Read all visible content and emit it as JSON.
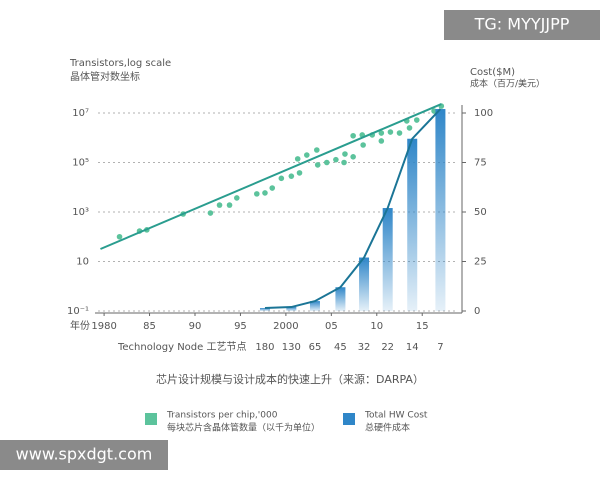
{
  "chart_data": {
    "type": "combo",
    "title": "芯片设计规模与设计成本的快速上升（来源：DARPA）",
    "ylabel": "Transistors,log scale",
    "ylabel_cn": "晶体管对数坐标",
    "y2label": "Cost($M)",
    "y2label_cn": "成本（百万/美元）",
    "xlabel": "年份",
    "node_label": "Technology Node 工艺节点",
    "xlim": [
      1979,
      2018
    ],
    "xticks": [
      1980,
      {
        "value": 1985,
        "label": "85"
      },
      {
        "value": 1990,
        "label": "90"
      },
      {
        "value": 1995,
        "label": "95"
      },
      2000,
      {
        "value": 2005,
        "label": "05"
      },
      {
        "value": 2010,
        "label": "10"
      },
      {
        "value": 2015,
        "label": "15"
      }
    ],
    "yscale": "log",
    "ylim": [
      0.1,
      10000000
    ],
    "yticks": [
      {
        "value": 0.1,
        "label": "10⁻¹"
      },
      10,
      {
        "value": 1000,
        "label": "10³"
      },
      {
        "value": 100000,
        "label": "10⁵"
      },
      {
        "value": 10000000,
        "label": "10⁷"
      }
    ],
    "y2lim": [
      0,
      100
    ],
    "y2ticks": [
      0,
      25,
      50,
      75,
      100
    ],
    "grid": true,
    "series": [
      {
        "type": "scatter",
        "name": "Transistors per chip,'000",
        "name_cn": "每块芯片含晶体管数量（以千为单位）",
        "color": "#5cc39c",
        "x": [
          1981.7,
          1983.9,
          1984.7,
          1988.7,
          1991.7,
          1992.7,
          1993.8,
          1994.6,
          1996.8,
          1997.7,
          1998.5,
          1999.5,
          2000.6,
          2001.5,
          2001.3,
          2002.3,
          2003.4,
          2003.5,
          2004.5,
          2005.5,
          2006.5,
          2006.4,
          2007.4,
          2007.4,
          2008.4,
          2008.5,
          2009.5,
          2010.5,
          2010.5,
          2011.5,
          2012.5,
          2013.3,
          2013.6,
          2014.4,
          2016.3,
          2017.1
        ],
        "values": [
          100,
          170,
          190,
          830,
          910,
          1900,
          1900,
          3700,
          5400,
          5900,
          9300,
          23000,
          28000,
          38000,
          140000,
          200000,
          320000,
          80000,
          100000,
          130000,
          220000,
          100000,
          170000,
          1200000,
          1300000,
          510000,
          1300000,
          1550000,
          740000,
          1700000,
          1550000,
          4800000,
          2500000,
          5200000,
          12000000,
          19000000
        ]
      },
      {
        "type": "bar",
        "axis": "y2",
        "name": "Total HW Cost",
        "name_cn": "总硬件成本",
        "color": "#2f86c8",
        "line_color": "#1b7596",
        "categories": [
          "180",
          "130",
          "65",
          "45",
          "32",
          "22",
          "14",
          "7"
        ],
        "x": [
          1997.7,
          2000.6,
          2003.2,
          2006.0,
          2008.6,
          2011.2,
          2013.9,
          2017.0
        ],
        "values": [
          1.5,
          2,
          5,
          12,
          27,
          52,
          87,
          102
        ]
      }
    ],
    "trend": {
      "color": "#2a9d8f",
      "x": [
        1979.6,
        2017.1
      ],
      "values": [
        32,
        23000000
      ]
    }
  },
  "watermarks": {
    "top": "TG: MYYJJPP",
    "bottom": "www.spxdgt.com"
  }
}
